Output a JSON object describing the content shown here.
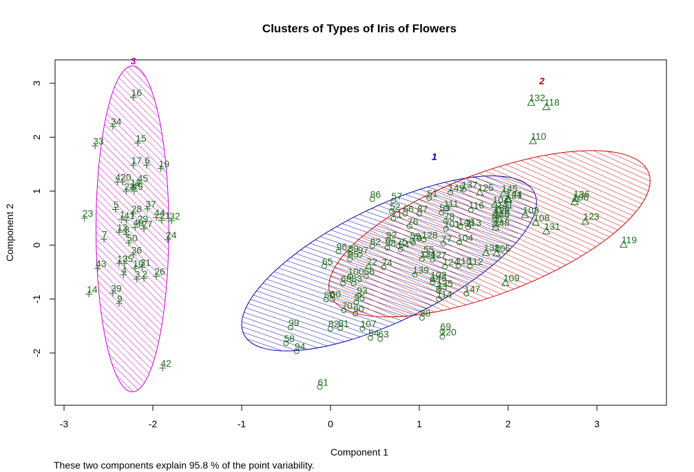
{
  "chart_data": {
    "type": "scatter",
    "title": "Clusters of Types of Iris of Flowers",
    "xlabel": "Component 1",
    "ylabel": "Component 2",
    "xlim": [
      -3.2,
      3.8
    ],
    "ylim": [
      -3.0,
      3.5
    ],
    "xticks": [
      -3,
      -2,
      -1,
      0,
      1,
      2,
      3
    ],
    "yticks": [
      -2,
      -1,
      0,
      1,
      2,
      3
    ],
    "grid": false,
    "legend": "none",
    "note": "These two components explain 95.8 % of the point variability.",
    "colors": {
      "points": "#1f6b1f",
      "cluster_1": "#0000aa",
      "cluster_2": "#cc0000",
      "cluster_3": "#cc00cc",
      "axes": "#000000"
    },
    "clusters": [
      {
        "name": "1",
        "color": "#0000aa",
        "center": [
          0.66,
          -0.34
        ],
        "rx": 1.82,
        "ry": 1.06,
        "angle_deg": 26,
        "label_pos": [
          1.17,
          1.58
        ]
      },
      {
        "name": "2",
        "color": "#cc0000",
        "center": [
          1.79,
          0.21
        ],
        "rx": 1.92,
        "ry": 1.12,
        "angle_deg": 21,
        "label_pos": [
          2.38,
          2.98
        ]
      },
      {
        "name": "3",
        "color": "#cc00cc",
        "center": [
          -2.23,
          0.3
        ],
        "rx": 0.41,
        "ry": 3.02,
        "angle_deg": 0,
        "label_pos": [
          -2.22,
          3.35
        ]
      }
    ],
    "points": [
      {
        "label": "16",
        "x": -2.22,
        "y": 2.74,
        "cluster": 3
      },
      {
        "label": "34",
        "x": -2.45,
        "y": 2.2,
        "cluster": 3
      },
      {
        "label": "33",
        "x": -2.65,
        "y": 1.84,
        "cluster": 3
      },
      {
        "label": "15",
        "x": -2.17,
        "y": 1.89,
        "cluster": 3
      },
      {
        "label": "17",
        "x": -2.22,
        "y": 1.48,
        "cluster": 3
      },
      {
        "label": "6",
        "x": -2.07,
        "y": 1.48,
        "cluster": 3
      },
      {
        "label": "19",
        "x": -1.91,
        "y": 1.42,
        "cluster": 3
      },
      {
        "label": "42",
        "x": -2.4,
        "y": 1.17,
        "cluster": 3
      },
      {
        "label": "20",
        "x": -2.34,
        "y": 1.17,
        "cluster": 3
      },
      {
        "label": "45",
        "x": -2.15,
        "y": 1.15,
        "cluster": 3
      },
      {
        "label": "11",
        "x": -2.23,
        "y": 1.07,
        "cluster": 3
      },
      {
        "label": "49",
        "x": -2.21,
        "y": 1.0,
        "cluster": 3
      },
      {
        "label": "22",
        "x": -2.3,
        "y": 1.0,
        "cluster": 3
      },
      {
        "label": "23",
        "x": -2.77,
        "y": 0.5,
        "cluster": 3
      },
      {
        "label": "5",
        "x": -2.42,
        "y": 0.66,
        "cluster": 3
      },
      {
        "label": "37",
        "x": -2.06,
        "y": 0.67,
        "cluster": 3
      },
      {
        "label": "28",
        "x": -2.22,
        "y": 0.58,
        "cluster": 3
      },
      {
        "label": "1",
        "x": -2.35,
        "y": 0.48,
        "cluster": 3
      },
      {
        "label": "41",
        "x": -2.3,
        "y": 0.46,
        "cluster": 3
      },
      {
        "label": "44",
        "x": -1.96,
        "y": 0.51,
        "cluster": 3
      },
      {
        "label": "32",
        "x": -1.79,
        "y": 0.45,
        "cluster": 3
      },
      {
        "label": "21",
        "x": -1.9,
        "y": 0.46,
        "cluster": 3
      },
      {
        "label": "29",
        "x": -2.15,
        "y": 0.4,
        "cluster": 3
      },
      {
        "label": "40",
        "x": -2.2,
        "y": 0.33,
        "cluster": 3
      },
      {
        "label": "27",
        "x": -2.1,
        "y": 0.3,
        "cluster": 3
      },
      {
        "label": "12",
        "x": -2.38,
        "y": 0.24,
        "cluster": 3
      },
      {
        "label": "8",
        "x": -2.3,
        "y": 0.2,
        "cluster": 3
      },
      {
        "label": "24",
        "x": -1.83,
        "y": 0.1,
        "cluster": 3
      },
      {
        "label": "7",
        "x": -2.55,
        "y": 0.11,
        "cluster": 3
      },
      {
        "label": "50",
        "x": -2.27,
        "y": 0.04,
        "cluster": 3
      },
      {
        "label": "36",
        "x": -2.22,
        "y": -0.18,
        "cluster": 3
      },
      {
        "label": "13",
        "x": -2.38,
        "y": -0.34,
        "cluster": 3
      },
      {
        "label": "35",
        "x": -2.32,
        "y": -0.34,
        "cluster": 3
      },
      {
        "label": "43",
        "x": -2.62,
        "y": -0.43,
        "cluster": 3
      },
      {
        "label": "10",
        "x": -2.2,
        "y": -0.43,
        "cluster": 3
      },
      {
        "label": "31",
        "x": -2.12,
        "y": -0.41,
        "cluster": 3
      },
      {
        "label": "4",
        "x": -2.33,
        "y": -0.55,
        "cluster": 3
      },
      {
        "label": "26",
        "x": -1.96,
        "y": -0.58,
        "cluster": 3
      },
      {
        "label": "3",
        "x": -2.18,
        "y": -0.63,
        "cluster": 3
      },
      {
        "label": "2",
        "x": -2.1,
        "y": -0.62,
        "cluster": 3
      },
      {
        "label": "39",
        "x": -2.45,
        "y": -0.89,
        "cluster": 3
      },
      {
        "label": "14",
        "x": -2.72,
        "y": -0.91,
        "cluster": 3
      },
      {
        "label": "9",
        "x": -2.38,
        "y": -1.08,
        "cluster": 3
      },
      {
        "label": "42",
        "x": -1.89,
        "y": -2.28,
        "cluster": 3
      },
      {
        "label": "132",
        "x": 2.26,
        "y": 2.64,
        "cluster": 2
      },
      {
        "label": "118",
        "x": 2.43,
        "y": 2.56,
        "cluster": 2
      },
      {
        "label": "110",
        "x": 2.28,
        "y": 1.93,
        "cluster": 2
      },
      {
        "label": "136",
        "x": 2.76,
        "y": 0.86,
        "cluster": 2
      },
      {
        "label": "106",
        "x": 2.75,
        "y": 0.8,
        "cluster": 2
      },
      {
        "label": "103",
        "x": 2.19,
        "y": 0.56,
        "cluster": 2
      },
      {
        "label": "108",
        "x": 2.31,
        "y": 0.42,
        "cluster": 2
      },
      {
        "label": "123",
        "x": 2.87,
        "y": 0.44,
        "cluster": 2
      },
      {
        "label": "131",
        "x": 2.43,
        "y": 0.26,
        "cluster": 2
      },
      {
        "label": "119",
        "x": 3.3,
        "y": 0.01,
        "cluster": 2
      },
      {
        "label": "109",
        "x": 1.97,
        "y": -0.7,
        "cluster": 2
      },
      {
        "label": "125",
        "x": 1.68,
        "y": 0.98,
        "cluster": 2
      },
      {
        "label": "145",
        "x": 1.95,
        "y": 0.96,
        "cluster": 2
      },
      {
        "label": "121",
        "x": 2.0,
        "y": 0.84,
        "cluster": 2
      },
      {
        "label": "144",
        "x": 2.0,
        "y": 0.86,
        "cluster": 2
      },
      {
        "label": "104",
        "x": 1.85,
        "y": 0.75,
        "cluster": 2
      },
      {
        "label": "141",
        "x": 1.9,
        "y": 0.66,
        "cluster": 2
      },
      {
        "label": "126",
        "x": 1.86,
        "y": 0.55,
        "cluster": 2
      },
      {
        "label": "140",
        "x": 1.86,
        "y": 0.48,
        "cluster": 2
      },
      {
        "label": "117",
        "x": 1.86,
        "y": 0.4,
        "cluster": 2
      },
      {
        "label": "148",
        "x": 1.86,
        "y": 0.33,
        "cluster": 2
      },
      {
        "label": "130",
        "x": 1.86,
        "y": 0.6,
        "cluster": 2
      },
      {
        "label": "138",
        "x": 1.75,
        "y": -0.14,
        "cluster": 2
      },
      {
        "label": "105",
        "x": 1.87,
        "y": -0.15,
        "cluster": 2
      },
      {
        "label": "57",
        "x": 0.71,
        "y": 0.82,
        "cluster": 1
      },
      {
        "label": "86",
        "x": 0.47,
        "y": 0.85,
        "cluster": 1
      },
      {
        "label": "51",
        "x": 1.11,
        "y": 0.87,
        "cluster": 1
      },
      {
        "label": "52",
        "x": 0.69,
        "y": 0.63,
        "cluster": 1
      },
      {
        "label": "149",
        "x": 1.35,
        "y": 0.97,
        "cluster": 1
      },
      {
        "label": "137",
        "x": 1.5,
        "y": 1.03,
        "cluster": 1
      },
      {
        "label": "111",
        "x": 1.3,
        "y": 0.68,
        "cluster": 1
      },
      {
        "label": "116",
        "x": 1.58,
        "y": 0.65,
        "cluster": 1
      },
      {
        "label": "66",
        "x": 0.84,
        "y": 0.58,
        "cluster": 1
      },
      {
        "label": "87",
        "x": 1.0,
        "y": 0.58,
        "cluster": 1
      },
      {
        "label": "53",
        "x": 1.25,
        "y": 0.6,
        "cluster": 1
      },
      {
        "label": "71",
        "x": 0.71,
        "y": 0.49,
        "cluster": 1
      },
      {
        "label": "76",
        "x": 0.89,
        "y": 0.35,
        "cluster": 1
      },
      {
        "label": "78",
        "x": 1.3,
        "y": 0.44,
        "cluster": 1
      },
      {
        "label": "146",
        "x": 1.46,
        "y": 0.34,
        "cluster": 1
      },
      {
        "label": "113",
        "x": 1.55,
        "y": 0.33,
        "cluster": 1
      },
      {
        "label": "101",
        "x": 1.3,
        "y": 0.3,
        "cluster": 1
      },
      {
        "label": "92",
        "x": 0.65,
        "y": 0.1,
        "cluster": 1
      },
      {
        "label": "62",
        "x": 0.47,
        "y": -0.02,
        "cluster": 1
      },
      {
        "label": "98",
        "x": 0.64,
        "y": -0.05,
        "cluster": 1
      },
      {
        "label": "75",
        "x": 0.77,
        "y": -0.02,
        "cluster": 1
      },
      {
        "label": "64",
        "x": 0.79,
        "y": -0.08,
        "cluster": 1
      },
      {
        "label": "59",
        "x": 0.92,
        "y": 0.08,
        "cluster": 1
      },
      {
        "label": "128",
        "x": 1.05,
        "y": 0.1,
        "cluster": 1
      },
      {
        "label": "79",
        "x": 0.93,
        "y": 0.04,
        "cluster": 1
      },
      {
        "label": "77",
        "x": 1.27,
        "y": 0.03,
        "cluster": 1
      },
      {
        "label": "104",
        "x": 1.45,
        "y": 0.05,
        "cluster": 1
      },
      {
        "label": "96",
        "x": 0.09,
        "y": -0.12,
        "cluster": 1
      },
      {
        "label": "89",
        "x": 0.22,
        "y": -0.15,
        "cluster": 1
      },
      {
        "label": "97",
        "x": 0.33,
        "y": -0.18,
        "cluster": 1
      },
      {
        "label": "85",
        "x": 0.22,
        "y": -0.26,
        "cluster": 1
      },
      {
        "label": "55",
        "x": 1.07,
        "y": -0.17,
        "cluster": 1
      },
      {
        "label": "134",
        "x": 1.03,
        "y": -0.26,
        "cluster": 1
      },
      {
        "label": "127",
        "x": 1.15,
        "y": -0.27,
        "cluster": 1
      },
      {
        "label": "72",
        "x": 0.43,
        "y": -0.4,
        "cluster": 1
      },
      {
        "label": "74",
        "x": 0.6,
        "y": -0.41,
        "cluster": 1
      },
      {
        "label": "65",
        "x": -0.07,
        "y": -0.39,
        "cluster": 1
      },
      {
        "label": "124",
        "x": 1.29,
        "y": -0.4,
        "cluster": 1
      },
      {
        "label": "115",
        "x": 1.44,
        "y": -0.38,
        "cluster": 1
      },
      {
        "label": "112",
        "x": 1.57,
        "y": -0.39,
        "cluster": 1
      },
      {
        "label": "139",
        "x": 0.95,
        "y": -0.55,
        "cluster": 1
      },
      {
        "label": "100",
        "x": 0.22,
        "y": -0.58,
        "cluster": 1
      },
      {
        "label": "56",
        "x": 0.4,
        "y": -0.58,
        "cluster": 1
      },
      {
        "label": "102",
        "x": 1.15,
        "y": -0.64,
        "cluster": 1
      },
      {
        "label": "143",
        "x": 1.15,
        "y": -0.69,
        "cluster": 1
      },
      {
        "label": "68",
        "x": 0.14,
        "y": -0.71,
        "cluster": 1
      },
      {
        "label": "83",
        "x": 0.26,
        "y": -0.71,
        "cluster": 1
      },
      {
        "label": "135",
        "x": 1.22,
        "y": -0.8,
        "cluster": 1
      },
      {
        "label": "73",
        "x": 1.22,
        "y": -0.85,
        "cluster": 1
      },
      {
        "label": "147",
        "x": 1.53,
        "y": -0.9,
        "cluster": 1
      },
      {
        "label": "93",
        "x": 0.32,
        "y": -0.93,
        "cluster": 1
      },
      {
        "label": "80",
        "x": -0.05,
        "y": -1.01,
        "cluster": 1
      },
      {
        "label": "60",
        "x": 0.02,
        "y": -1.0,
        "cluster": 1
      },
      {
        "label": "95",
        "x": 0.29,
        "y": -1.06,
        "cluster": 1
      },
      {
        "label": "114",
        "x": 1.22,
        "y": -1.0,
        "cluster": 1
      },
      {
        "label": "70",
        "x": 0.15,
        "y": -1.21,
        "cluster": 1
      },
      {
        "label": "90",
        "x": 0.28,
        "y": -1.27,
        "cluster": 1
      },
      {
        "label": "88",
        "x": 1.03,
        "y": -1.35,
        "cluster": 1
      },
      {
        "label": "99",
        "x": -0.45,
        "y": -1.53,
        "cluster": 1
      },
      {
        "label": "82",
        "x": -0.0,
        "y": -1.55,
        "cluster": 1
      },
      {
        "label": "81",
        "x": 0.11,
        "y": -1.54,
        "cluster": 1
      },
      {
        "label": "107",
        "x": 0.36,
        "y": -1.55,
        "cluster": 1
      },
      {
        "label": "69",
        "x": 1.26,
        "y": -1.6,
        "cluster": 1
      },
      {
        "label": "120",
        "x": 1.26,
        "y": -1.7,
        "cluster": 1
      },
      {
        "label": "54",
        "x": 0.45,
        "y": -1.72,
        "cluster": 1
      },
      {
        "label": "63",
        "x": 0.56,
        "y": -1.74,
        "cluster": 1
      },
      {
        "label": "58",
        "x": -0.5,
        "y": -1.82,
        "cluster": 1
      },
      {
        "label": "94",
        "x": -0.38,
        "y": -1.97,
        "cluster": 1
      },
      {
        "label": "61",
        "x": -0.12,
        "y": -2.63,
        "cluster": 1
      }
    ]
  }
}
